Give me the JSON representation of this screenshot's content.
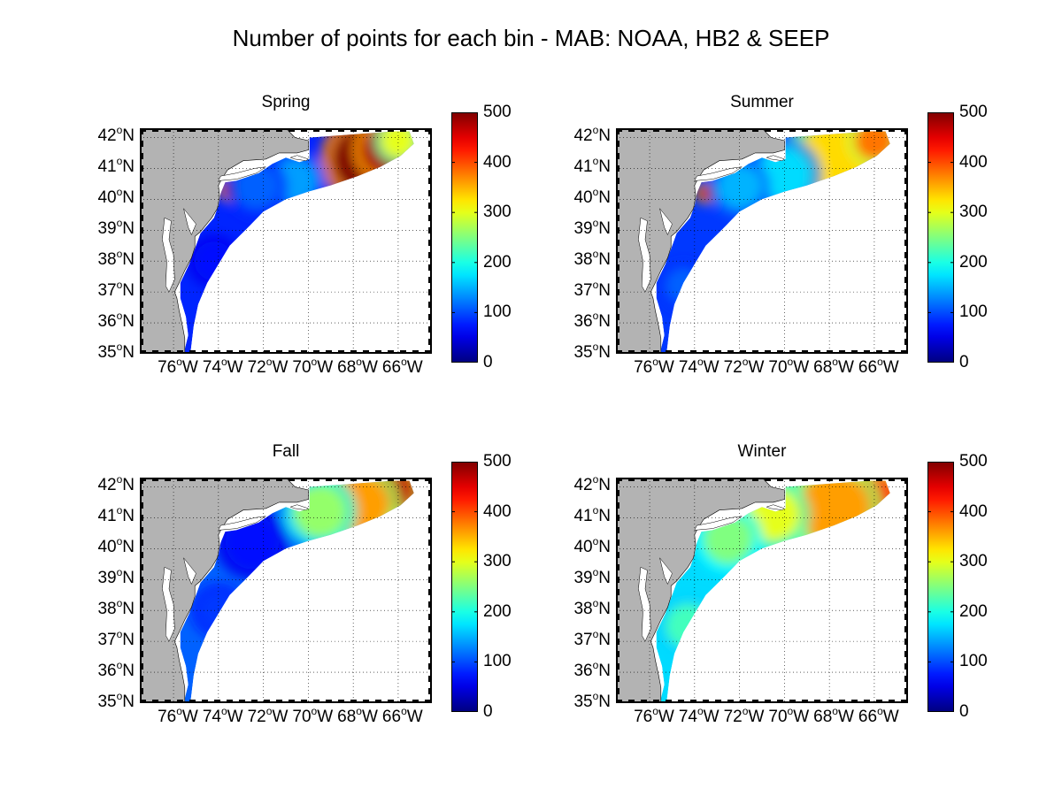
{
  "figure_title": "Number of points for each bin - MAB: NOAA, HB2 & SEEP",
  "panels": [
    {
      "title": "Spring"
    },
    {
      "title": "Summer"
    },
    {
      "title": "Fall"
    },
    {
      "title": "Winter"
    }
  ],
  "lat_ticks": [
    "42",
    "41",
    "40",
    "39",
    "38",
    "37",
    "36",
    "35"
  ],
  "lat_suffix": "N",
  "lon_tick_label": "76°W74°W72°W70°W68°W66°W",
  "lon_ticks": [
    "76",
    "74",
    "72",
    "70",
    "68",
    "66"
  ],
  "lon_suffix": "W",
  "colorbar": {
    "ticks": [
      "500",
      "400",
      "300",
      "200",
      "100",
      "0"
    ],
    "range": [
      0,
      500
    ],
    "colormap": "jet"
  },
  "map_extent": {
    "lon": [
      -77.5,
      -64.5
    ],
    "lat": [
      35,
      42.3
    ]
  },
  "colors": {
    "land": "#b3b3b3",
    "background": "#ffffff"
  }
}
